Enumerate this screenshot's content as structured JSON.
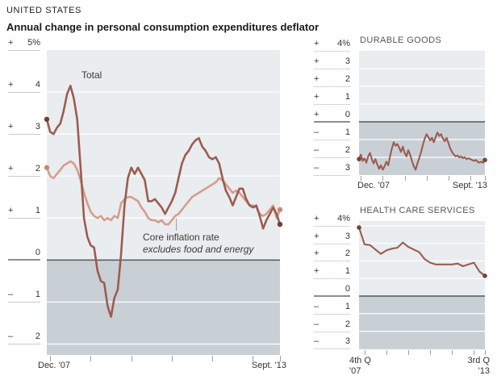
{
  "header": {
    "kicker": "UNITED STATES",
    "title": "Annual change in personal consumption expenditures deflator"
  },
  "colors": {
    "plot_bg_above_zero": "#e9edef",
    "plot_bg_below_zero": "#c9d0d5",
    "zero_line": "#54575a",
    "gridline": "#ffffff",
    "dark_line": "#9c5c50",
    "light_line": "#d79c8d",
    "dark_dot": "#6e4138",
    "light_dot": "#c98875",
    "tick": "#9aa0a4"
  },
  "chart_data": [
    {
      "id": "pce-deflator-total-vs-core",
      "type": "line",
      "title": "Annual change in personal consumption expenditures deflator",
      "frequency": "monthly",
      "x_start": "Dec. '07",
      "x_end": "Sept. '13",
      "x_axis_labels": {
        "left": [
          "Dec. '07"
        ],
        "right": [
          "Sept. '13"
        ]
      },
      "unit": "percent",
      "ylim": [
        -2.26,
        5
      ],
      "grid": "horizontal-white-on-gray",
      "legend": "inline-annotations",
      "y_ticks": [
        {
          "v": 5,
          "label": "+ 5%"
        },
        {
          "v": 4,
          "label": "+ 4"
        },
        {
          "v": 3,
          "label": "+ 3"
        },
        {
          "v": 2,
          "label": "+ 2"
        },
        {
          "v": 1,
          "label": "+ 1"
        },
        {
          "v": 0,
          "label": "0"
        },
        {
          "v": -1,
          "label": "– 1"
        },
        {
          "v": -2,
          "label": "– 2"
        }
      ],
      "annotations": {
        "total": "Total",
        "core_line1": "Core inflation rate",
        "core_line2": "excludes food and energy"
      },
      "series": [
        {
          "name": "Core inflation rate (excludes food and energy)",
          "color": "#d79c8d",
          "endpoint_dot_color": "#c98875",
          "values": [
            2.2,
            2.0,
            1.95,
            2.05,
            2.15,
            2.25,
            2.3,
            2.35,
            2.3,
            2.15,
            1.9,
            1.6,
            1.35,
            1.15,
            1.05,
            1.0,
            1.05,
            0.95,
            1.0,
            0.95,
            1.05,
            1.0,
            1.35,
            1.45,
            1.5,
            1.5,
            1.45,
            1.4,
            1.25,
            1.15,
            1.0,
            0.95,
            0.95,
            0.9,
            0.95,
            0.85,
            0.85,
            0.95,
            1.05,
            1.1,
            1.2,
            1.3,
            1.4,
            1.5,
            1.55,
            1.6,
            1.65,
            1.7,
            1.75,
            1.8,
            1.85,
            1.95,
            1.9,
            1.8,
            1.7,
            1.6,
            1.65,
            1.6,
            1.5,
            1.4,
            1.3,
            1.3,
            1.25,
            1.1,
            1.05,
            1.1,
            1.2,
            1.3,
            1.0,
            1.2
          ]
        },
        {
          "name": "Total",
          "color": "#9c5c50",
          "endpoint_dot_color": "#6e4138",
          "values": [
            3.35,
            3.05,
            3.0,
            3.15,
            3.25,
            3.55,
            3.95,
            4.15,
            3.85,
            3.35,
            2.2,
            1.0,
            0.55,
            0.35,
            0.3,
            -0.25,
            -0.5,
            -0.55,
            -1.1,
            -1.35,
            -0.9,
            -0.7,
            0.15,
            1.3,
            1.95,
            2.2,
            2.05,
            2.2,
            2.05,
            1.9,
            1.4,
            1.4,
            1.45,
            1.35,
            1.25,
            1.1,
            1.25,
            1.4,
            1.6,
            1.95,
            2.3,
            2.5,
            2.6,
            2.75,
            2.85,
            2.9,
            2.7,
            2.6,
            2.45,
            2.4,
            2.45,
            2.3,
            1.95,
            1.65,
            1.5,
            1.3,
            1.5,
            1.7,
            1.7,
            1.45,
            1.3,
            1.25,
            1.3,
            1.05,
            0.75,
            0.95,
            1.1,
            1.25,
            1.1,
            0.85
          ]
        }
      ]
    },
    {
      "id": "durable-goods",
      "type": "line",
      "title": "DURABLE GOODS",
      "frequency": "monthly",
      "x_start": "Dec. '07",
      "x_end": "Sept. '13",
      "x_axis_labels": {
        "left": [
          "Dec. '07"
        ],
        "right": [
          "Sept. '13"
        ]
      },
      "unit": "percent",
      "ylim": [
        -3,
        4
      ],
      "grid": "horizontal-white-on-gray",
      "y_ticks": [
        {
          "v": 4,
          "label": "+ 4%"
        },
        {
          "v": 3,
          "label": "+ 3"
        },
        {
          "v": 2,
          "label": "+ 2"
        },
        {
          "v": 1,
          "label": "+ 1"
        },
        {
          "v": 0,
          "label": "+ 0"
        },
        {
          "v": -1,
          "label": "– 1"
        },
        {
          "v": -2,
          "label": "– 2"
        },
        {
          "v": -3,
          "label": "– 3"
        }
      ],
      "series": [
        {
          "name": "Durable goods",
          "color": "#9c5c50",
          "endpoint_dot_color": "#744339",
          "values": [
            -2.1,
            -1.85,
            -2.2,
            -2.05,
            -2.3,
            -1.95,
            -1.75,
            -2.1,
            -2.35,
            -2.1,
            -2.4,
            -2.65,
            -2.45,
            -2.7,
            -2.5,
            -2.25,
            -2.45,
            -1.95,
            -1.5,
            -1.15,
            -1.35,
            -1.25,
            -1.45,
            -1.7,
            -1.4,
            -1.75,
            -1.95,
            -1.6,
            -1.85,
            -2.2,
            -2.5,
            -2.7,
            -2.35,
            -2.05,
            -1.7,
            -1.3,
            -0.95,
            -0.7,
            -0.85,
            -1.05,
            -0.9,
            -1.15,
            -0.85,
            -0.6,
            -0.8,
            -0.7,
            -0.95,
            -1.1,
            -0.9,
            -1.2,
            -1.5,
            -1.7,
            -1.85,
            -1.95,
            -1.9,
            -2.0,
            -1.95,
            -2.05,
            -2.0,
            -2.1,
            -2.05,
            -2.1,
            -2.15,
            -2.2,
            -2.15,
            -2.25,
            -2.3,
            -2.25,
            -2.3,
            -2.15
          ]
        }
      ]
    },
    {
      "id": "health-care-services",
      "type": "line",
      "title": "HEALTH CARE SERVICES",
      "frequency": "quarterly",
      "x_start": "4th Q '07",
      "x_end": "3rd Q '13",
      "x_axis_labels": {
        "left": [
          "4th Q",
          "'07"
        ],
        "right": [
          "3rd Q",
          "'13"
        ]
      },
      "unit": "percent",
      "ylim": [
        -3.03,
        4.27
      ],
      "grid": "horizontal-white-on-gray",
      "y_ticks": [
        {
          "v": 4,
          "label": "+ 4%"
        },
        {
          "v": 3,
          "label": "+ 3"
        },
        {
          "v": 2,
          "label": "+ 2"
        },
        {
          "v": 1,
          "label": "+ 1"
        },
        {
          "v": 0,
          "label": "0"
        },
        {
          "v": -1,
          "label": "– 1"
        },
        {
          "v": -2,
          "label": "– 2"
        },
        {
          "v": -3,
          "label": "– 3"
        }
      ],
      "series": [
        {
          "name": "Health care services",
          "color": "#9c5c50",
          "endpoint_dot_color": "#744339",
          "values": [
            3.9,
            2.95,
            2.9,
            2.65,
            2.4,
            2.6,
            2.7,
            2.75,
            3.05,
            2.8,
            2.65,
            2.5,
            2.1,
            1.9,
            1.8,
            1.8,
            1.8,
            1.8,
            1.85,
            1.7,
            1.8,
            1.9,
            1.4,
            1.15
          ]
        }
      ]
    }
  ]
}
